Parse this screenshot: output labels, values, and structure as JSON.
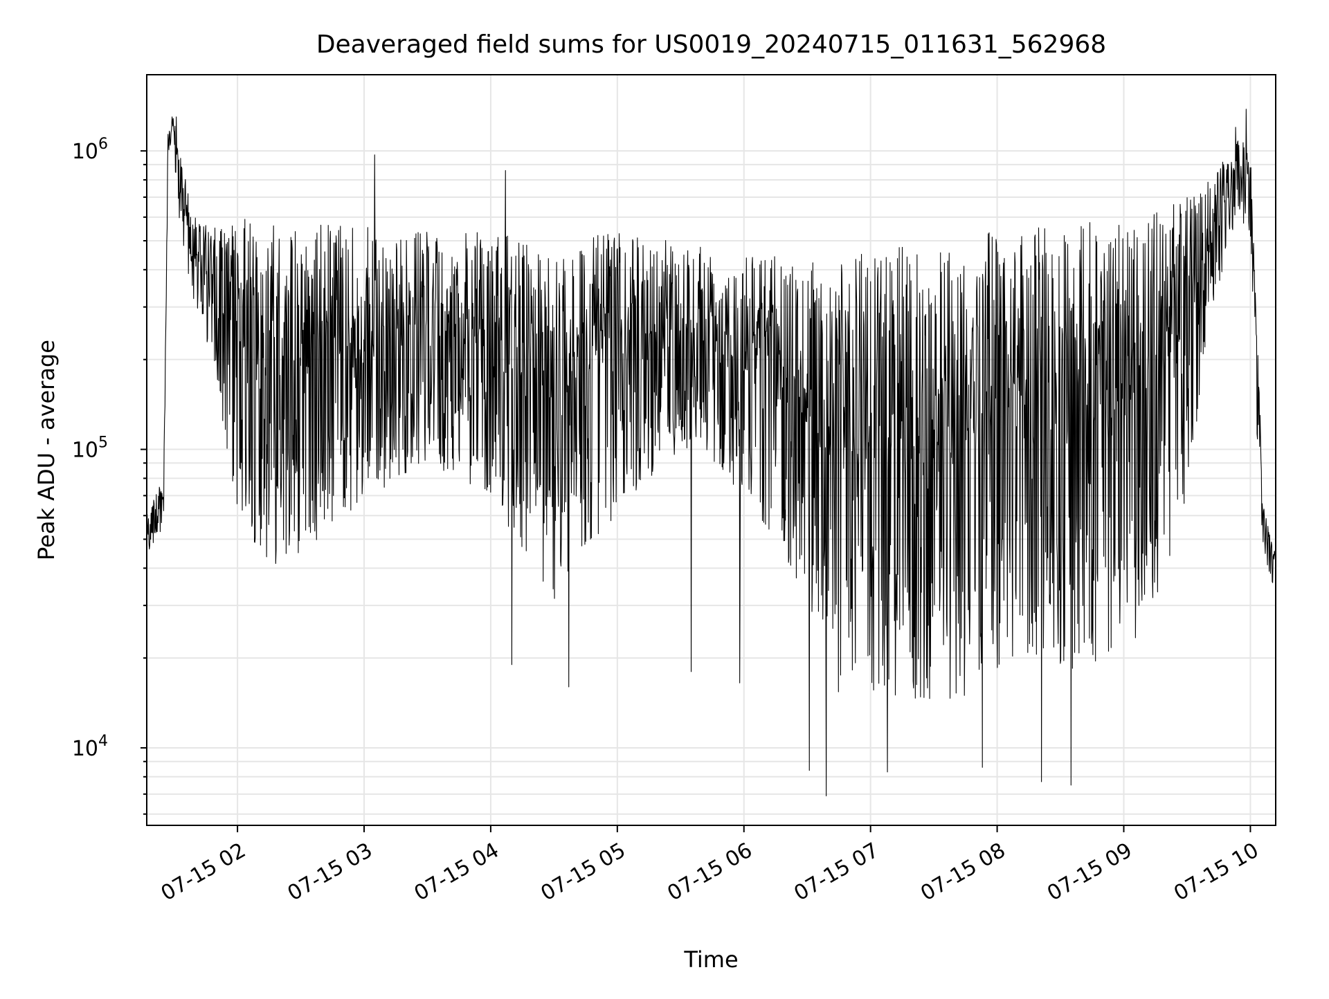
{
  "chart_data": {
    "type": "line",
    "title": "Deaveraged field sums for US0019_20240715_011631_562968",
    "xlabel": "Time",
    "ylabel": "Peak ADU - average",
    "yscale": "log",
    "xlim": [
      "2024-07-15 01:17",
      "2024-07-15 10:12"
    ],
    "ylim": [
      5500,
      1800000
    ],
    "x_tick_labels": [
      "07-15 02",
      "07-15 03",
      "07-15 04",
      "07-15 05",
      "07-15 06",
      "07-15 07",
      "07-15 08",
      "07-15 09",
      "07-15 10"
    ],
    "x_ticks": [
      "2024-07-15 02:00",
      "2024-07-15 03:00",
      "2024-07-15 04:00",
      "2024-07-15 05:00",
      "2024-07-15 06:00",
      "2024-07-15 07:00",
      "2024-07-15 08:00",
      "2024-07-15 09:00",
      "2024-07-15 10:00"
    ],
    "y_ticks": [
      {
        "value": 10000,
        "base": "10",
        "exp": "4"
      },
      {
        "value": 100000,
        "base": "10",
        "exp": "5"
      },
      {
        "value": 1000000,
        "base": "10",
        "exp": "6"
      }
    ],
    "grid": true,
    "line_color": "#000000",
    "grid_color": "#e6e6e6",
    "series": [
      {
        "x": [
          "2024-07-15 01:17",
          "2024-07-15 01:21",
          "2024-07-15 01:25",
          "2024-07-15 01:27",
          "2024-07-15 01:30",
          "2024-07-15 01:33",
          "2024-07-15 01:40",
          "2024-07-15 01:50",
          "2024-07-15 02:00",
          "2024-07-15 02:15",
          "2024-07-15 02:30",
          "2024-07-15 02:45",
          "2024-07-15 03:00",
          "2024-07-15 03:15",
          "2024-07-15 03:30",
          "2024-07-15 03:45",
          "2024-07-15 04:00",
          "2024-07-15 04:15",
          "2024-07-15 04:30",
          "2024-07-15 04:45",
          "2024-07-15 05:00",
          "2024-07-15 05:15",
          "2024-07-15 05:30",
          "2024-07-15 05:45",
          "2024-07-15 06:00",
          "2024-07-15 06:15",
          "2024-07-15 06:30",
          "2024-07-15 06:45",
          "2024-07-15 07:00",
          "2024-07-15 07:15",
          "2024-07-15 07:30",
          "2024-07-15 07:45",
          "2024-07-15 08:00",
          "2024-07-15 08:15",
          "2024-07-15 08:30",
          "2024-07-15 08:45",
          "2024-07-15 09:00",
          "2024-07-15 09:15",
          "2024-07-15 09:30",
          "2024-07-15 09:40",
          "2024-07-15 09:50",
          "2024-07-15 09:55",
          "2024-07-15 10:00",
          "2024-07-15 10:03",
          "2024-07-15 10:06",
          "2024-07-15 10:12"
        ],
        "upper": [
          60000,
          75000,
          75000,
          1200000,
          1300000,
          950000,
          600000,
          550000,
          600000,
          580000,
          550000,
          600000,
          560000,
          520000,
          550000,
          540000,
          530000,
          510000,
          500000,
          520000,
          530000,
          510000,
          500000,
          490000,
          470000,
          450000,
          430000,
          440000,
          470000,
          480000,
          500000,
          520000,
          540000,
          550000,
          560000,
          580000,
          600000,
          620000,
          700000,
          800000,
          1000000,
          1100000,
          1000000,
          300000,
          65000,
          45000
        ],
        "lower": [
          40000,
          50000,
          55000,
          800000,
          900000,
          500000,
          300000,
          150000,
          60000,
          40000,
          45000,
          55000,
          60000,
          80000,
          90000,
          80000,
          70000,
          45000,
          30000,
          45000,
          60000,
          80000,
          100000,
          90000,
          70000,
          50000,
          30000,
          15000,
          14000,
          14000,
          13000,
          15000,
          18000,
          20000,
          18000,
          18000,
          20000,
          30000,
          60000,
          250000,
          500000,
          600000,
          500000,
          100000,
          45000,
          33000
        ],
        "dips": [
          {
            "x": "2024-07-15 06:39",
            "y": 6900
          },
          {
            "x": "2024-07-15 06:31",
            "y": 8400
          },
          {
            "x": "2024-07-15 07:08",
            "y": 8300
          },
          {
            "x": "2024-07-15 07:53",
            "y": 8600
          },
          {
            "x": "2024-07-15 08:21",
            "y": 7700
          },
          {
            "x": "2024-07-15 08:35",
            "y": 7500
          },
          {
            "x": "2024-07-15 04:37",
            "y": 16000
          },
          {
            "x": "2024-07-15 04:10",
            "y": 19000
          },
          {
            "x": "2024-07-15 05:35",
            "y": 18000
          },
          {
            "x": "2024-07-15 05:58",
            "y": 16500
          }
        ],
        "peaks": [
          {
            "x": "2024-07-15 01:29",
            "y": 1300000
          },
          {
            "x": "2024-07-15 01:31",
            "y": 1300000
          },
          {
            "x": "2024-07-15 03:05",
            "y": 970000
          },
          {
            "x": "2024-07-15 04:07",
            "y": 860000
          },
          {
            "x": "2024-07-15 09:58",
            "y": 1380000
          },
          {
            "x": "2024-07-15 09:53",
            "y": 1200000
          }
        ]
      }
    ]
  }
}
